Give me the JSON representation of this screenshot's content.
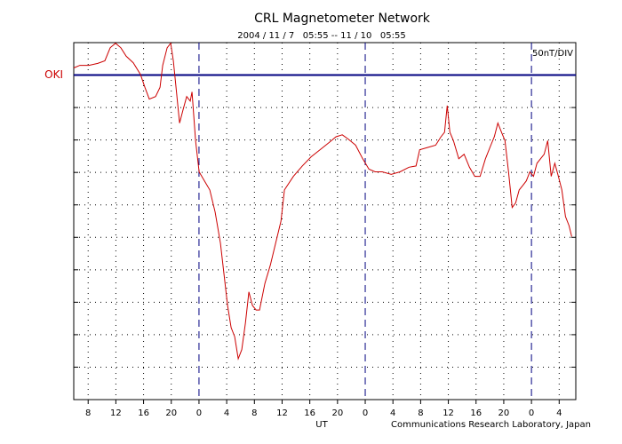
{
  "chart_data": {
    "type": "line",
    "title": "CRL Magnetometer Network",
    "subtitle": "2004 / 11 / 7   05:55 -- 11 / 10   05:55",
    "scale_label": "50nT/DIV",
    "xlabel": "UT",
    "credit": "Communications Research Laboratory, Japan",
    "station": {
      "name": "OKI",
      "baseline": 0,
      "color": "#000080"
    },
    "grid": true,
    "xlim": [
      5.92,
      78.4
    ],
    "xticks": [
      8,
      12,
      16,
      20,
      {
        "value": 24,
        "label": "0"
      },
      {
        "value": 28,
        "label": "4"
      },
      {
        "value": 32,
        "label": "8"
      },
      {
        "value": 36,
        "label": "12"
      },
      {
        "value": 40,
        "label": "16"
      },
      {
        "value": 44,
        "label": "20"
      },
      {
        "value": 48,
        "label": "0"
      },
      {
        "value": 52,
        "label": "4"
      },
      {
        "value": 56,
        "label": "8"
      },
      {
        "value": 60,
        "label": "12"
      },
      {
        "value": 64,
        "label": "16"
      },
      {
        "value": 68,
        "label": "20"
      },
      {
        "value": 72,
        "label": "0"
      },
      {
        "value": 76,
        "label": "4"
      }
    ],
    "ylim": [
      -500,
      50
    ],
    "yticks": [
      -500,
      -450,
      -400,
      -350,
      -300,
      -250,
      -200,
      -150,
      -100,
      -50,
      0,
      50
    ],
    "x": [
      5.92,
      6.81,
      8.1,
      9.38,
      10.41,
      11.18,
      11.95,
      12.72,
      13.49,
      14.52,
      15.55,
      16.19,
      16.83,
      17.73,
      18.37,
      18.76,
      19.4,
      19.91,
      20.3,
      20.68,
      21.2,
      21.71,
      22.22,
      22.74,
      22.99,
      23.51,
      24.02,
      24.79,
      25.56,
      26.33,
      27.1,
      27.61,
      28.13,
      28.64,
      29.15,
      29.67,
      30.18,
      30.7,
      31.21,
      31.72,
      32.24,
      32.75,
      33.52,
      34.29,
      35.06,
      35.83,
      36.34,
      37.63,
      38.91,
      40.19,
      41.48,
      42.76,
      43.79,
      44.69,
      45.59,
      46.61,
      47.64,
      48.54,
      49.44,
      50.46,
      51.75,
      53.03,
      54.32,
      55.34,
      55.86,
      56.88,
      58.17,
      58.94,
      59.45,
      59.84,
      60.22,
      60.73,
      61.5,
      62.27,
      63.04,
      63.81,
      64.58,
      65.35,
      66.13,
      66.64,
      67.15,
      67.67,
      68.18,
      68.69,
      69.21,
      69.72,
      70.23,
      70.75,
      71.26,
      71.77,
      72.29,
      72.8,
      73.31,
      73.83,
      74.34,
      74.85,
      75.37,
      75.88,
      76.39,
      76.91,
      77.42,
      77.81
    ],
    "series": [
      {
        "color": "#cc0000",
        "values": [
          11,
          15,
          15,
          18,
          22,
          42,
          49,
          42,
          29,
          19,
          1,
          -19,
          -37,
          -33,
          -19,
          15,
          42,
          49,
          22,
          -19,
          -74,
          -53,
          -33,
          -40,
          -26,
          -101,
          -149,
          -163,
          -177,
          -211,
          -259,
          -307,
          -355,
          -389,
          -403,
          -437,
          -423,
          -382,
          -334,
          -355,
          -362,
          -362,
          -321,
          -293,
          -259,
          -225,
          -177,
          -156,
          -140,
          -126,
          -115,
          -104,
          -95,
          -92,
          -99,
          -108,
          -129,
          -145,
          -149,
          -149,
          -153,
          -149,
          -142,
          -140,
          -115,
          -112,
          -108,
          -95,
          -88,
          -47,
          -88,
          -101,
          -129,
          -122,
          -142,
          -156,
          -156,
          -129,
          -108,
          -95,
          -74,
          -88,
          -101,
          -149,
          -204,
          -197,
          -177,
          -170,
          -163,
          -149,
          -156,
          -136,
          -129,
          -122,
          -101,
          -156,
          -136,
          -156,
          -177,
          -218,
          -232,
          -249
        ]
      }
    ]
  }
}
